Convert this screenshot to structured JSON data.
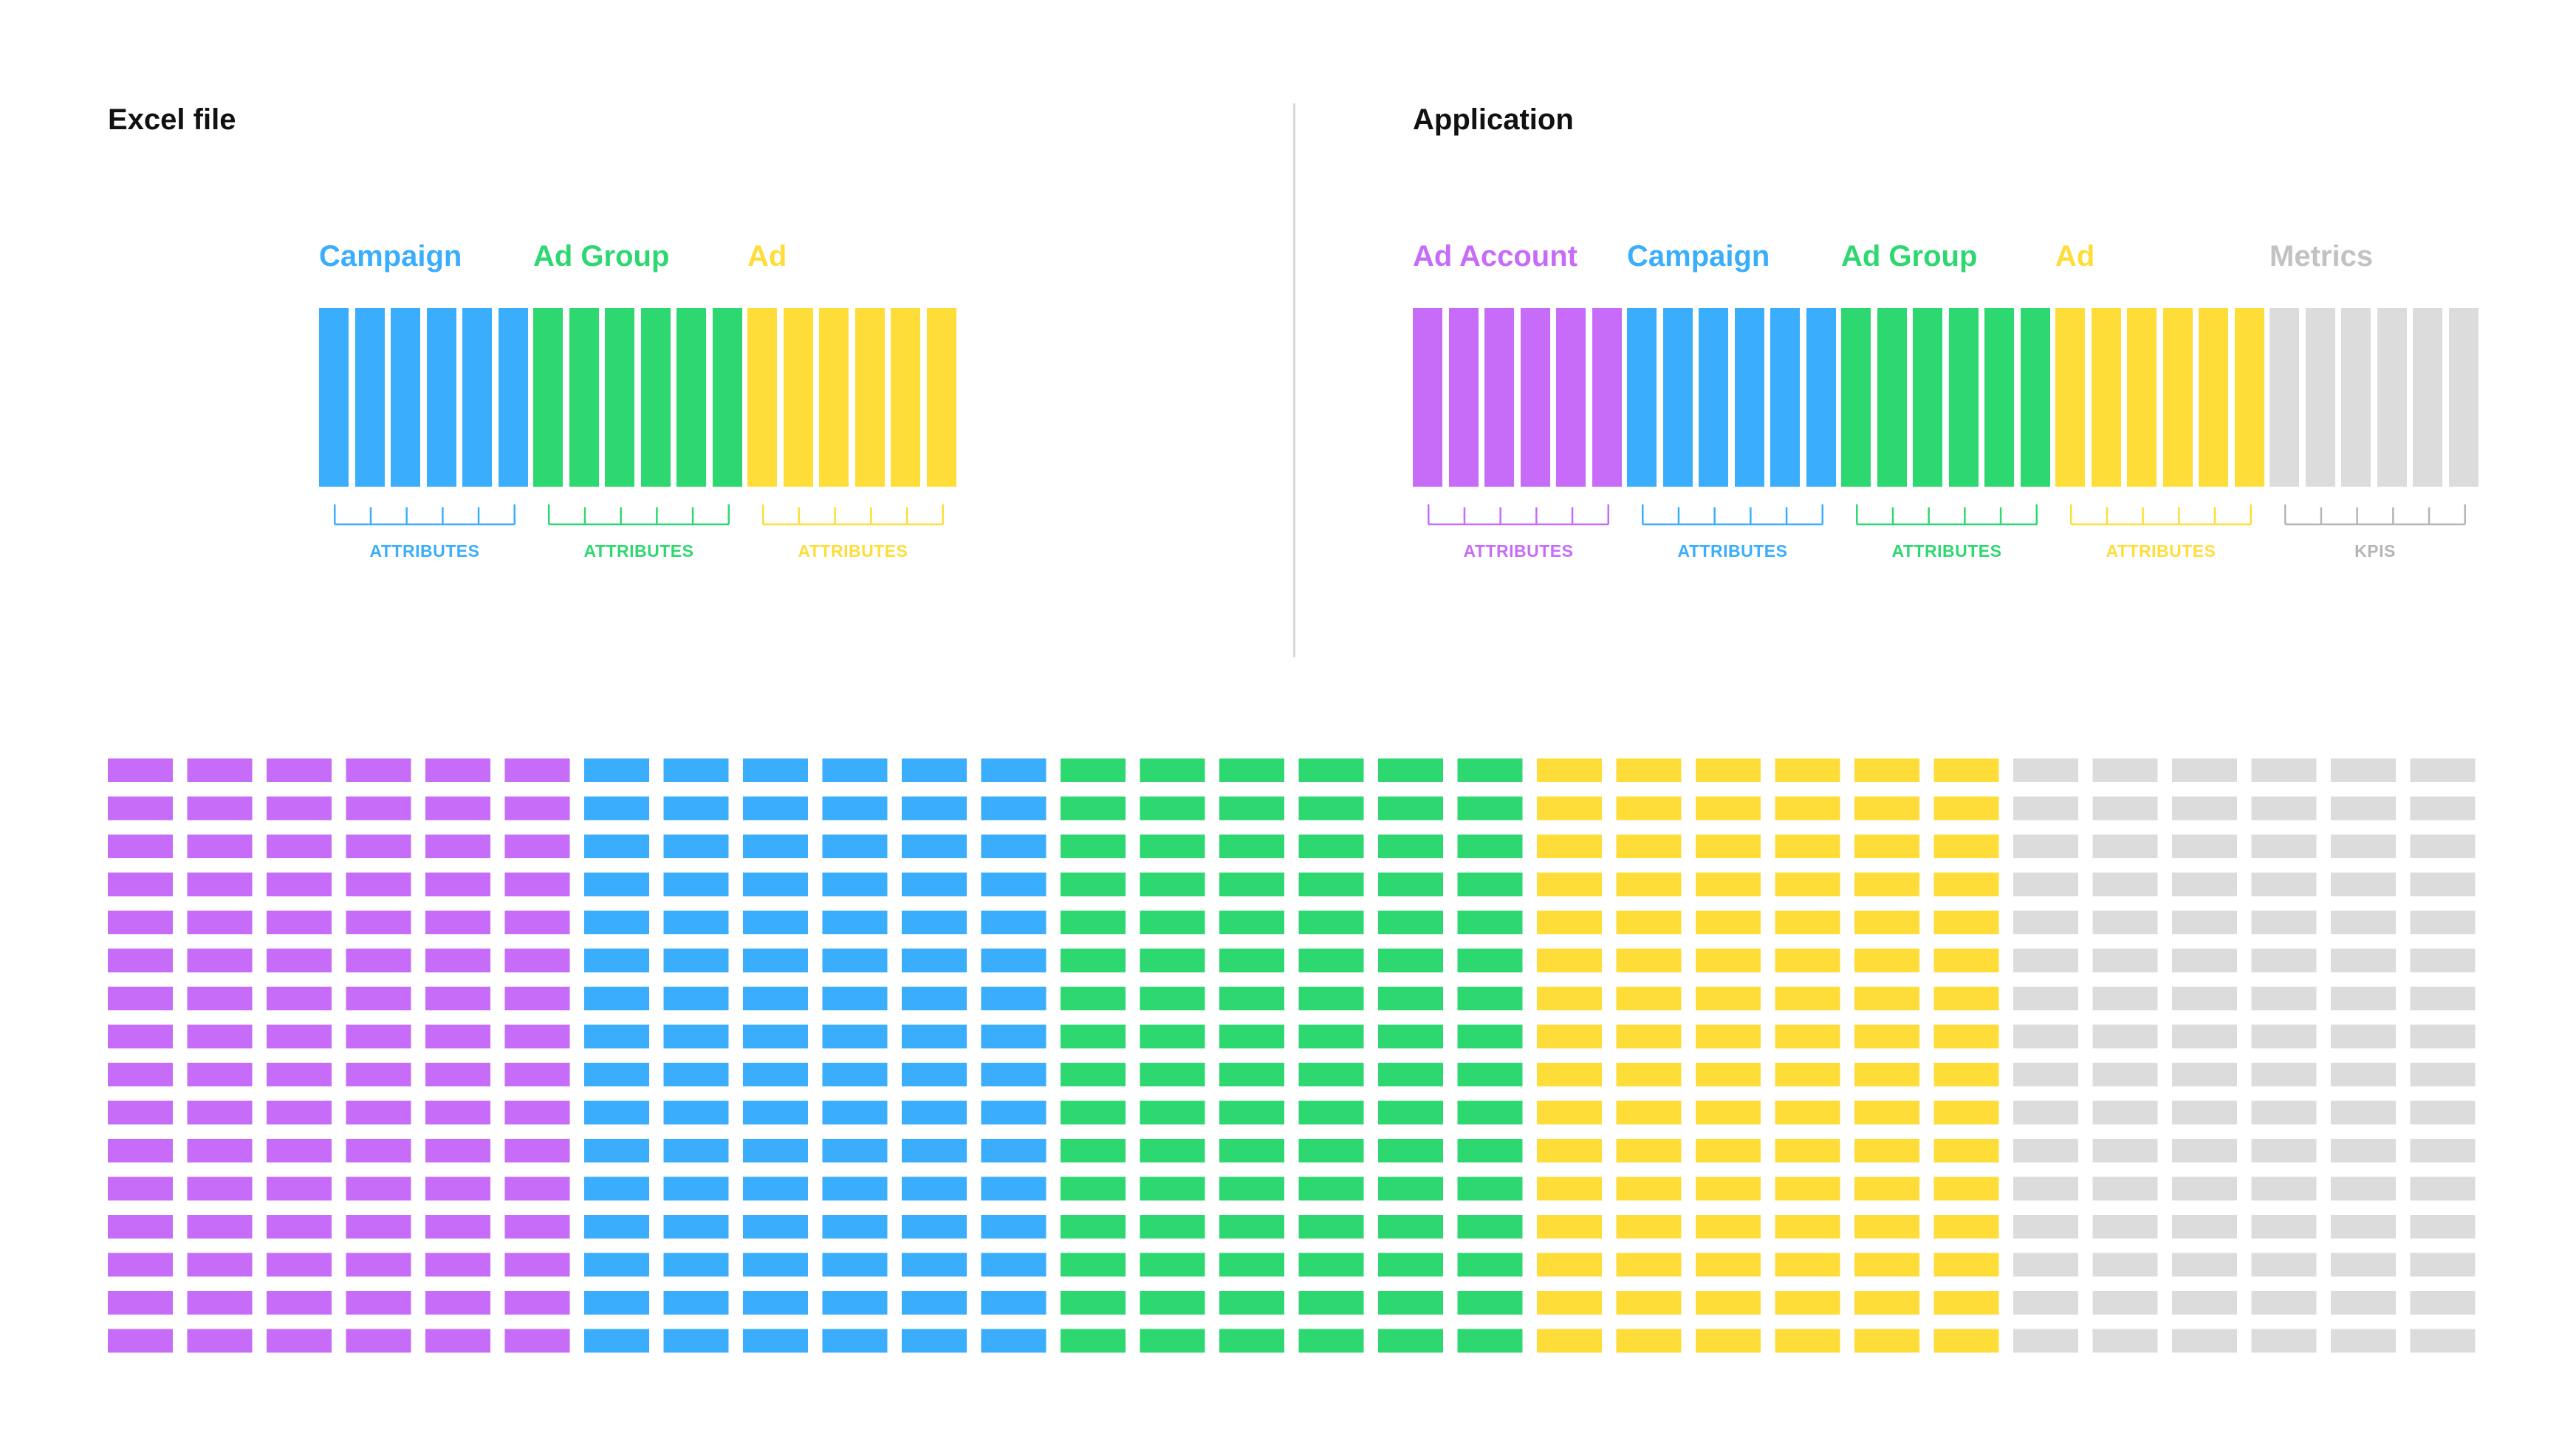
{
  "excel": {
    "title": "Excel file",
    "groups": [
      {
        "label": "Campaign",
        "caption": "ATTRIBUTES",
        "color": "#3aaefc",
        "columns": 6
      },
      {
        "label": "Ad Group",
        "caption": "ATTRIBUTES",
        "color": "#2ed870",
        "columns": 6
      },
      {
        "label": "Ad",
        "caption": "ATTRIBUTES",
        "color": "#ffdd38",
        "columns": 6
      }
    ]
  },
  "application": {
    "title": "Application",
    "groups": [
      {
        "label": "Ad Account",
        "caption": "ATTRIBUTES",
        "color": "#c66cf8",
        "columns": 6
      },
      {
        "label": "Campaign",
        "caption": "ATTRIBUTES",
        "color": "#3aaefc",
        "columns": 6
      },
      {
        "label": "Ad Group",
        "caption": "ATTRIBUTES",
        "color": "#2ed870",
        "columns": 6
      },
      {
        "label": "Ad",
        "caption": "ATTRIBUTES",
        "color": "#ffdd38",
        "columns": 6
      },
      {
        "label": "Metrics",
        "caption": "KPIS",
        "color": "#dcdcdc",
        "label_color": "#c2c2c2",
        "caption_color": "#b5b5b5",
        "columns": 6
      }
    ]
  },
  "table_grid": {
    "rows": 16,
    "column_groups": [
      {
        "color": "#c66cf8",
        "columns": 6
      },
      {
        "color": "#3aaefc",
        "columns": 6
      },
      {
        "color": "#2ed870",
        "columns": 6
      },
      {
        "color": "#ffdd38",
        "columns": 6
      },
      {
        "color": "#dcdcdc",
        "columns": 6
      }
    ]
  }
}
